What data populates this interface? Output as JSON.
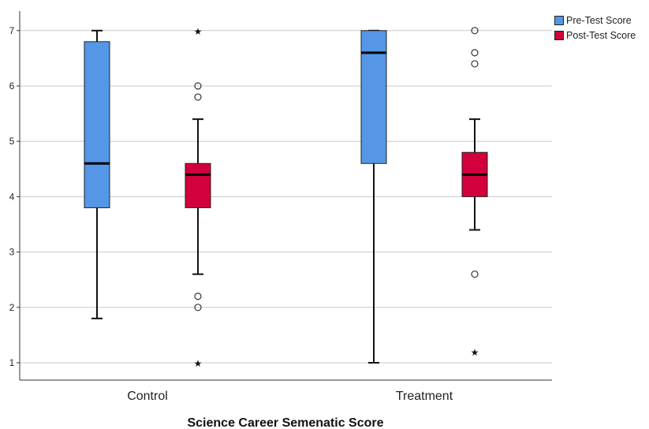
{
  "chart_data": {
    "type": "box",
    "title": "",
    "xlabel": "Science Career Semenatic Score",
    "ylabel": "",
    "ylim": [
      0.7,
      7.35
    ],
    "yticks": [
      1,
      2,
      3,
      4,
      5,
      6,
      7
    ],
    "grid": true,
    "legend_position": "top-right",
    "categories": [
      "Control",
      "Treatment"
    ],
    "series": [
      {
        "name": "Pre-Test Score",
        "color": "#5596e6",
        "boxes": [
          {
            "category": "Control",
            "min": 1.8,
            "q1": 3.8,
            "median": 4.6,
            "q3": 6.8,
            "max": 7.0,
            "outliers": [],
            "extremes": []
          },
          {
            "category": "Treatment",
            "min": 1.0,
            "q1": 4.6,
            "median": 6.6,
            "q3": 7.0,
            "max": 7.0,
            "outliers": [],
            "extremes": []
          }
        ]
      },
      {
        "name": "Post-Test Score",
        "color": "#d2003c",
        "boxes": [
          {
            "category": "Control",
            "min": 2.6,
            "q1": 3.8,
            "median": 4.4,
            "q3": 4.6,
            "max": 5.4,
            "outliers": [
              6.0,
              5.8,
              2.2,
              2.0
            ],
            "extremes": [
              7.0,
              1.0
            ]
          },
          {
            "category": "Treatment",
            "min": 3.4,
            "q1": 4.0,
            "median": 4.4,
            "q3": 4.8,
            "max": 5.4,
            "outliers": [
              7.0,
              6.6,
              6.4,
              2.6
            ],
            "extremes": [
              1.2
            ]
          }
        ]
      }
    ]
  }
}
